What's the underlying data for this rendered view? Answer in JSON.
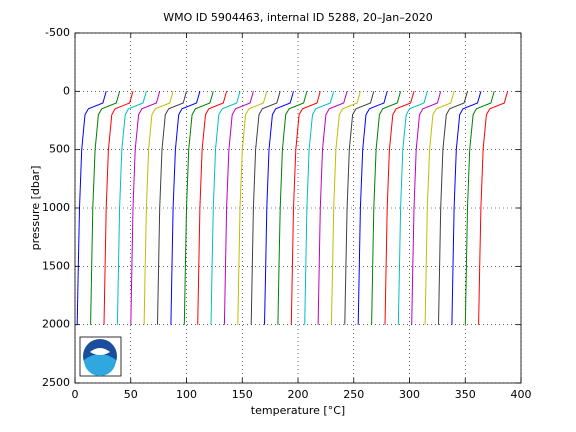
{
  "chart_data": {
    "type": "line",
    "title": "WMO ID 5904463, internal ID 5288, 20–Jan–2020",
    "x_label": "temperature [°C]",
    "y_label": "pressure [dbar]",
    "y": [
      0,
      100,
      150,
      200,
      500,
      1000,
      1500,
      2000
    ],
    "series": [
      {
        "color": "#0000ff",
        "values": [
          28,
          25,
          12,
          9,
          6,
          4,
          3,
          2
        ]
      },
      {
        "color": "#008000",
        "values": [
          40,
          37,
          24,
          21,
          18,
          16,
          15,
          14
        ]
      },
      {
        "color": "#ff0000",
        "values": [
          52,
          49,
          36,
          33,
          30,
          28,
          27,
          26
        ]
      },
      {
        "color": "#00bfbf",
        "values": [
          64,
          61,
          48,
          45,
          42,
          40,
          39,
          38
        ]
      },
      {
        "color": "#bf00bf",
        "values": [
          76,
          73,
          60,
          57,
          54,
          52,
          51,
          50
        ]
      },
      {
        "color": "#bfbf00",
        "values": [
          88,
          85,
          72,
          69,
          66,
          64,
          63,
          62
        ]
      },
      {
        "color": "#404040",
        "values": [
          100,
          97,
          84,
          81,
          78,
          76,
          75,
          74
        ]
      },
      {
        "color": "#0000ff",
        "values": [
          112,
          109,
          96,
          93,
          90,
          88,
          87,
          86
        ]
      },
      {
        "color": "#008000",
        "values": [
          124,
          121,
          108,
          105,
          102,
          100,
          99,
          98
        ]
      },
      {
        "color": "#ff0000",
        "values": [
          136,
          133,
          120,
          117,
          114,
          112,
          111,
          110
        ]
      },
      {
        "color": "#00bfbf",
        "values": [
          148,
          145,
          132,
          129,
          126,
          124,
          123,
          122
        ]
      },
      {
        "color": "#bf00bf",
        "values": [
          160,
          157,
          144,
          141,
          138,
          136,
          135,
          134
        ]
      },
      {
        "color": "#bfbf00",
        "values": [
          172,
          169,
          156,
          153,
          150,
          148,
          147,
          146
        ]
      },
      {
        "color": "#404040",
        "values": [
          184,
          181,
          168,
          165,
          162,
          160,
          159,
          158
        ]
      },
      {
        "color": "#0000ff",
        "values": [
          196,
          193,
          180,
          177,
          174,
          172,
          171,
          170
        ]
      },
      {
        "color": "#008000",
        "values": [
          208,
          205,
          192,
          189,
          186,
          184,
          183,
          182
        ]
      },
      {
        "color": "#ff0000",
        "values": [
          220,
          217,
          204,
          201,
          198,
          196,
          195,
          194
        ]
      },
      {
        "color": "#00bfbf",
        "values": [
          232,
          229,
          216,
          213,
          210,
          208,
          207,
          206
        ]
      },
      {
        "color": "#bf00bf",
        "values": [
          244,
          241,
          228,
          225,
          222,
          220,
          219,
          218
        ]
      },
      {
        "color": "#bfbf00",
        "values": [
          256,
          253,
          240,
          237,
          234,
          232,
          231,
          230
        ]
      },
      {
        "color": "#404040",
        "values": [
          268,
          265,
          252,
          249,
          246,
          244,
          243,
          242
        ]
      },
      {
        "color": "#0000ff",
        "values": [
          280,
          277,
          264,
          261,
          258,
          256,
          255,
          254
        ]
      },
      {
        "color": "#008000",
        "values": [
          292,
          289,
          276,
          273,
          270,
          268,
          267,
          266
        ]
      },
      {
        "color": "#ff0000",
        "values": [
          304,
          301,
          288,
          285,
          282,
          280,
          279,
          278
        ]
      },
      {
        "color": "#00bfbf",
        "values": [
          316,
          313,
          300,
          297,
          294,
          292,
          291,
          290
        ]
      },
      {
        "color": "#bf00bf",
        "values": [
          328,
          325,
          312,
          309,
          306,
          304,
          303,
          302
        ]
      },
      {
        "color": "#bfbf00",
        "values": [
          340,
          337,
          324,
          321,
          318,
          316,
          315,
          314
        ]
      },
      {
        "color": "#404040",
        "values": [
          352,
          349,
          336,
          333,
          330,
          328,
          327,
          326
        ]
      },
      {
        "color": "#0000ff",
        "values": [
          364,
          361,
          348,
          345,
          342,
          340,
          339,
          338
        ]
      },
      {
        "color": "#008000",
        "values": [
          376,
          373,
          360,
          357,
          354,
          352,
          351,
          350
        ]
      },
      {
        "color": "#ff0000",
        "values": [
          388,
          385,
          372,
          369,
          366,
          364,
          363,
          362
        ]
      }
    ],
    "xlim": [
      0,
      400
    ],
    "xticks": [
      0,
      50,
      100,
      150,
      200,
      250,
      300,
      350,
      400
    ],
    "ylim": [
      -500,
      2500
    ],
    "yticks": [
      -500,
      0,
      500,
      1000,
      1500,
      2000,
      2500
    ],
    "y_reversed": true,
    "grid": true
  }
}
